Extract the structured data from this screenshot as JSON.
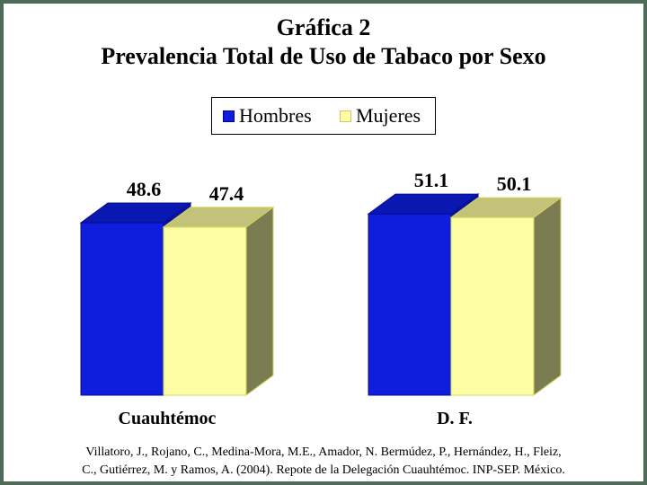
{
  "title": "Gráfica 2",
  "subtitle": "Prevalencia Total de Uso de Tabaco por Sexo",
  "legend": [
    {
      "label": "Hombres",
      "color": "#0f1edc"
    },
    {
      "label": "Mujeres",
      "color": "#fdfda3"
    }
  ],
  "source": {
    "line1": "Villatoro, J., Rojano, C., Medina-Mora, M.E., Amador, N. Bermúdez, P., Hernández, H., Fleiz,",
    "line2": "C., Gutiérrez, M. y Ramos, A. (2004). Repote de la Delegación Cuauhtémoc. INP-SEP. México."
  },
  "chart_data": {
    "type": "bar",
    "style": "3d-clustered",
    "categories": [
      "Cuauhtémoc",
      "D. F."
    ],
    "series": [
      {
        "name": "Hombres",
        "values": [
          48.6,
          51.1
        ],
        "color": "#0f1edc"
      },
      {
        "name": "Mujeres",
        "values": [
          47.4,
          50.1
        ],
        "color": "#fdfda3"
      }
    ],
    "data_labels": [
      "48.6",
      "47.4",
      "51.1",
      "50.1"
    ],
    "grid": false,
    "legend_position": "top"
  }
}
